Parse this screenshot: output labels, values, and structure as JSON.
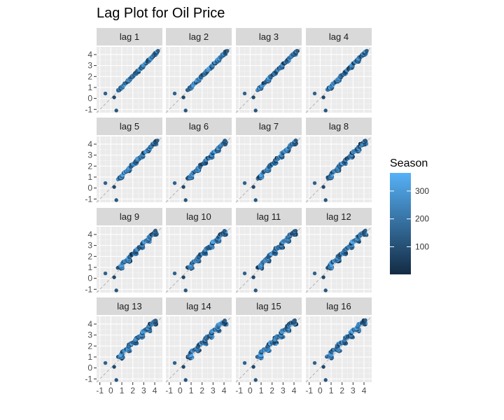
{
  "chart_data": {
    "type": "scatter",
    "title": "Lag Plot for Oil Price",
    "xlabel": "",
    "ylabel": "",
    "facets": [
      "lag 1",
      "lag 2",
      "lag 3",
      "lag 4",
      "lag 5",
      "lag 6",
      "lag 7",
      "lag 8",
      "lag 9",
      "lag 10",
      "lag 11",
      "lag 12",
      "lag 13",
      "lag 14",
      "lag 15",
      "lag 16"
    ],
    "xlim": [
      -1.3,
      4.7
    ],
    "ylim": [
      -1.3,
      4.7
    ],
    "x_ticks": [
      -1,
      0,
      1,
      2,
      3,
      4
    ],
    "x_tick_labels": [
      "-1",
      "0",
      "1",
      "2",
      "3",
      "4"
    ],
    "y_ticks": [
      -1,
      0,
      1,
      2,
      3,
      4
    ],
    "y_tick_labels": [
      "-1",
      "0",
      "1",
      "2",
      "3",
      "4"
    ],
    "grid": true,
    "reference_line": "y = x (dashed)",
    "color_variable": "Season",
    "color_range": [
      1,
      365
    ],
    "color_low": "#132B43",
    "color_high": "#56B1F7",
    "legend": {
      "title": "Season",
      "placement": "right",
      "ticks": [
        100,
        200,
        300
      ],
      "tick_labels": [
        "100",
        "200",
        "300"
      ]
    },
    "series_description": "points cluster tightly along the diagonal from about 0.6 to 4.4; a few outliers near (-0.5, 0.5) and (0.5, -1.1)"
  }
}
